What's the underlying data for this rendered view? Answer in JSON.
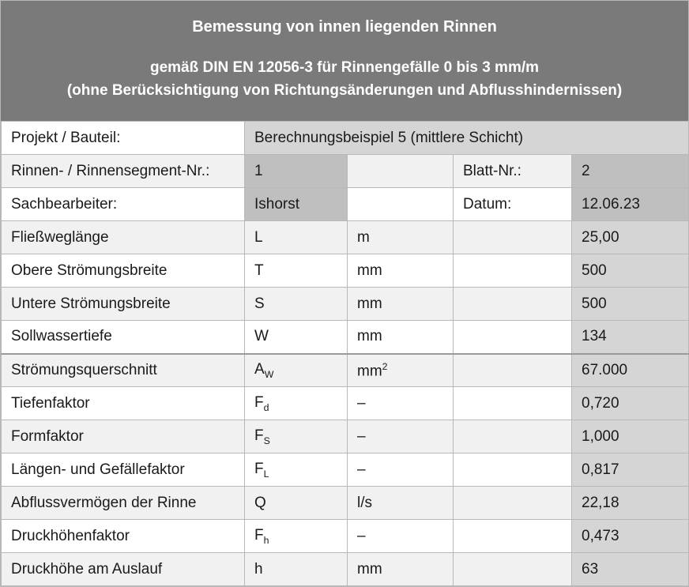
{
  "header": {
    "title": "Bemessung von innen liegenden Rinnen",
    "subtitle_line1": "gemäß DIN EN 12056-3 für Rinnengefälle 0 bis 3 mm/m",
    "subtitle_line2": "(ohne Berücksichtigung von Richtungsänderungen und Abflusshindernissen)"
  },
  "meta": {
    "projekt_label": "Projekt / Bauteil:",
    "projekt_value": "Berechnungsbeispiel 5 (mittlere Schicht)",
    "rinnen_label": "Rinnen- / Rinnensegment-Nr.:",
    "rinnen_value": "1",
    "blatt_label": "Blatt-Nr.:",
    "blatt_value": "2",
    "sach_label": "Sachbearbeiter:",
    "sach_value": "Ishorst",
    "datum_label": "Datum:",
    "datum_value": "12.06.23"
  },
  "rows": {
    "r1": {
      "label": "Fließweglänge",
      "sym": "L",
      "unit": "m",
      "val": "25,00"
    },
    "r2": {
      "label": "Obere Strömungsbreite",
      "sym": "T",
      "unit": "mm",
      "val": "500"
    },
    "r3": {
      "label": "Untere Strömungsbreite",
      "sym": "S",
      "unit": "mm",
      "val": "500"
    },
    "r4": {
      "label": "Sollwassertiefe",
      "sym": "W",
      "unit": "mm",
      "val": "134"
    },
    "r5": {
      "label": "Strömungsquerschnitt",
      "sym_base": "A",
      "sym_sub": "W",
      "unit_base": "mm",
      "unit_sup": "2",
      "val": "67.000"
    },
    "r6": {
      "label": "Tiefenfaktor",
      "sym_base": "F",
      "sym_sub": "d",
      "unit": " –",
      "val": "0,720"
    },
    "r7": {
      "label": "Formfaktor",
      "sym_base": "F",
      "sym_sub": "S",
      "unit": " –",
      "val": "1,000"
    },
    "r8": {
      "label": "Längen- und Gefällefaktor",
      "sym_base": "F",
      "sym_sub": "L",
      "unit": " –",
      "val": "0,817"
    },
    "r9": {
      "label": "Abflussvermögen der Rinne",
      "sym": "Q",
      "unit": "l/s",
      "val": "22,18"
    },
    "r10": {
      "label": "Druckhöhenfaktor",
      "sym_base": "F",
      "sym_sub": "h",
      "unit": " –",
      "val": "0,473"
    },
    "r11": {
      "label": "Druckhöhe am Auslauf",
      "sym": "h",
      "unit": "mm",
      "val": "63"
    }
  },
  "style": {
    "header_bg": "#7a7a7a",
    "header_fg": "#ffffff",
    "border": "#b8b8b8",
    "bg_white": "#ffffff",
    "bg_light": "#f1f1f1",
    "bg_med": "#d5d5d5",
    "bg_dark": "#bfbfbf",
    "font_size_body": 19,
    "font_size_title": 20
  }
}
